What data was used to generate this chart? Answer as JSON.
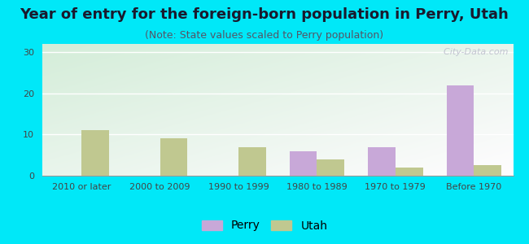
{
  "title": "Year of entry for the foreign-born population in Perry, Utah",
  "subtitle": "(Note: State values scaled to Perry population)",
  "categories": [
    "2010 or later",
    "2000 to 2009",
    "1990 to 1999",
    "1980 to 1989",
    "1970 to 1979",
    "Before 1970"
  ],
  "perry_values": [
    0,
    0,
    0,
    6,
    7,
    22
  ],
  "utah_values": [
    11,
    9,
    7,
    4,
    2,
    2.5
  ],
  "perry_color": "#c8a8d8",
  "utah_color": "#c0c890",
  "background_outer": "#00e8f8",
  "ylim": [
    0,
    32
  ],
  "yticks": [
    0,
    10,
    20,
    30
  ],
  "bar_width": 0.35,
  "title_fontsize": 13,
  "subtitle_fontsize": 9,
  "tick_fontsize": 8,
  "legend_fontsize": 10,
  "watermark": "  City-Data.com"
}
